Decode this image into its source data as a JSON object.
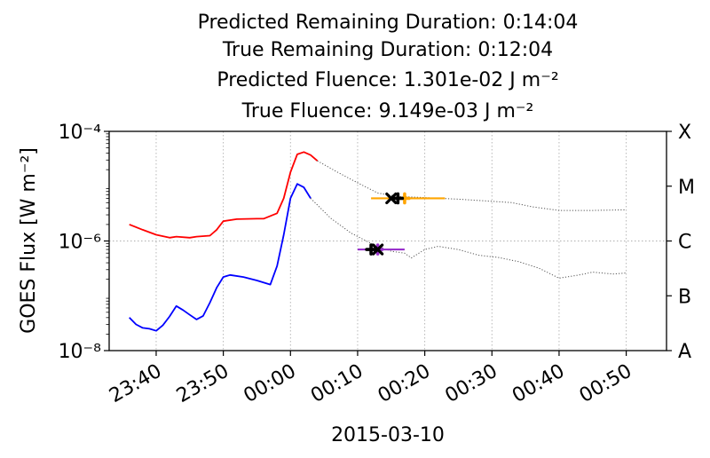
{
  "chart_data": {
    "type": "line",
    "title_lines": [
      "Predicted Remaining Duration: 0:14:04",
      "True Remaining Duration: 0:12:04",
      "Predicted Fluence: 1.301e-02 J m⁻²",
      "True Fluence: 9.149e-03 J m⁻²"
    ],
    "xlabel": "2015-03-10",
    "ylabel": "GOES Flux [W m⁻²]",
    "y_scale": "log",
    "ylim": [
      1e-08,
      0.0001
    ],
    "y_ticks": [
      {
        "value": 0.0001,
        "label": "10⁻⁴"
      },
      {
        "value": 1e-06,
        "label": "10⁻⁶"
      },
      {
        "value": 1e-08,
        "label": "10⁻⁸"
      }
    ],
    "xlim": [
      "23:33",
      "00:56"
    ],
    "x_ticks": [
      "23:40",
      "23:50",
      "00:00",
      "00:10",
      "00:20",
      "00:30",
      "00:40",
      "00:50"
    ],
    "right_axis_classes": [
      {
        "label": "X",
        "value": 0.0001
      },
      {
        "label": "M",
        "value": 1e-05
      },
      {
        "label": "C",
        "value": 1e-06
      },
      {
        "label": "B",
        "value": 1e-07
      },
      {
        "label": "A",
        "value": 1e-08
      }
    ],
    "grid": true,
    "series": [
      {
        "color": "#ff0000",
        "style": "solid",
        "points": [
          [
            "23:36",
            2e-06
          ],
          [
            "23:38",
            1.6e-06
          ],
          [
            "23:40",
            1.3e-06
          ],
          [
            "23:42",
            1.15e-06
          ],
          [
            "23:43",
            1.2e-06
          ],
          [
            "23:45",
            1.15e-06
          ],
          [
            "23:46",
            1.2e-06
          ],
          [
            "23:48",
            1.25e-06
          ],
          [
            "23:49",
            1.6e-06
          ],
          [
            "23:50",
            2.3e-06
          ],
          [
            "23:52",
            2.5e-06
          ],
          [
            "23:55",
            2.55e-06
          ],
          [
            "23:56",
            2.55e-06
          ],
          [
            "23:58",
            3.2e-06
          ],
          [
            "23:59",
            6e-06
          ],
          [
            "00:00",
            1.8e-05
          ],
          [
            "00:01",
            3.8e-05
          ],
          [
            "00:02",
            4.2e-05
          ],
          [
            "00:03",
            3.7e-05
          ],
          [
            "00:04",
            2.9e-05
          ]
        ]
      },
      {
        "color": "#555555",
        "style": "dotted",
        "points": [
          [
            "00:04",
            2.9e-05
          ],
          [
            "00:07",
            1.8e-05
          ],
          [
            "00:10",
            1.15e-05
          ],
          [
            "00:13",
            7.5e-06
          ],
          [
            "00:16",
            6.5e-06
          ],
          [
            "00:20",
            6.2e-06
          ],
          [
            "00:25",
            5.8e-06
          ],
          [
            "00:30",
            5.3e-06
          ],
          [
            "00:33",
            5e-06
          ],
          [
            "00:36",
            4.2e-06
          ],
          [
            "00:40",
            3.6e-06
          ],
          [
            "00:45",
            3.6e-06
          ],
          [
            "00:50",
            3.7e-06
          ]
        ]
      },
      {
        "color": "#0000ff",
        "style": "solid",
        "points": [
          [
            "23:36",
            4e-08
          ],
          [
            "23:37",
            3e-08
          ],
          [
            "23:38",
            2.6e-08
          ],
          [
            "23:39",
            2.5e-08
          ],
          [
            "23:40",
            2.3e-08
          ],
          [
            "23:41",
            2.9e-08
          ],
          [
            "23:42",
            4.2e-08
          ],
          [
            "23:43",
            6.5e-08
          ],
          [
            "23:44",
            5.5e-08
          ],
          [
            "23:45",
            4.5e-08
          ],
          [
            "23:46",
            3.7e-08
          ],
          [
            "23:47",
            4.3e-08
          ],
          [
            "23:48",
            7.5e-08
          ],
          [
            "23:49",
            1.4e-07
          ],
          [
            "23:50",
            2.2e-07
          ],
          [
            "23:51",
            2.4e-07
          ],
          [
            "23:53",
            2.2e-07
          ],
          [
            "23:55",
            1.9e-07
          ],
          [
            "23:57",
            1.6e-07
          ],
          [
            "23:58",
            3.5e-07
          ],
          [
            "23:59",
            1.3e-06
          ],
          [
            "00:00",
            6e-06
          ],
          [
            "00:01",
            1.1e-05
          ],
          [
            "00:02",
            9.5e-06
          ],
          [
            "00:03",
            6e-06
          ]
        ]
      },
      {
        "color": "#555555",
        "style": "dotted",
        "points": [
          [
            "00:03",
            6e-06
          ],
          [
            "00:06",
            2.6e-06
          ],
          [
            "00:09",
            1.4e-06
          ],
          [
            "00:12",
            9e-07
          ],
          [
            "00:15",
            6.5e-07
          ],
          [
            "00:17",
            6e-07
          ],
          [
            "00:18",
            4.9e-07
          ],
          [
            "00:20",
            7e-07
          ],
          [
            "00:22",
            8e-07
          ],
          [
            "00:25",
            7e-07
          ],
          [
            "00:28",
            5.5e-07
          ],
          [
            "00:31",
            5e-07
          ],
          [
            "00:34",
            4.2e-07
          ],
          [
            "00:37",
            3.2e-07
          ],
          [
            "00:40",
            2.1e-07
          ],
          [
            "00:43",
            2.4e-07
          ],
          [
            "00:45",
            2.7e-07
          ],
          [
            "00:48",
            2.5e-07
          ],
          [
            "00:50",
            2.6e-07
          ]
        ]
      }
    ],
    "markers": [
      {
        "color": "#ffa500",
        "x": "00:17",
        "y": 6e-06,
        "xerr": [
          "00:12",
          "00:23"
        ],
        "shape": "cross"
      },
      {
        "color": "#000000",
        "x": "00:16",
        "y": 6e-06,
        "shape": "cross"
      },
      {
        "color": "#000000",
        "x": "00:15",
        "y": 6e-06,
        "shape": "x"
      },
      {
        "color": "#9932cc",
        "x": "00:13",
        "y": 7e-07,
        "xerr": [
          "00:10",
          "00:17"
        ],
        "shape": "cross"
      },
      {
        "color": "#000000",
        "x": "00:12",
        "y": 7e-07,
        "shape": "cross"
      },
      {
        "color": "#000000",
        "x": "00:13",
        "y": 7e-07,
        "shape": "x"
      }
    ]
  }
}
